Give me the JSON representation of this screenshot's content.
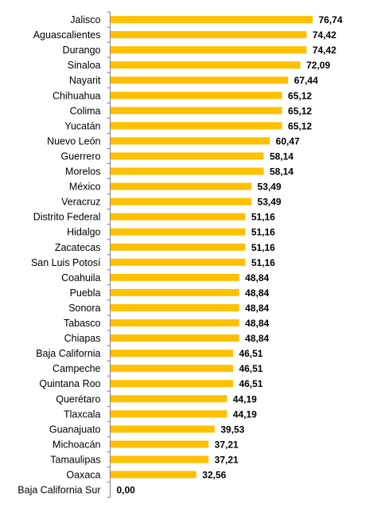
{
  "chart_data": {
    "type": "bar",
    "orientation": "horizontal",
    "categories": [
      "Jalisco",
      "Aguascalientes",
      "Durango",
      "Sinaloa",
      "Nayarit",
      "Chihuahua",
      "Colima",
      "Yucatán",
      "Nuevo León",
      "Guerrero",
      "Morelos",
      "México",
      "Veracruz",
      "Distrito Federal",
      "Hidalgo",
      "Zacatecas",
      "San Luis Potosí",
      "Coahuila",
      "Puebla",
      "Sonora",
      "Tabasco",
      "Chiapas",
      "Baja California",
      "Campeche",
      "Quintana Roo",
      "Querétaro",
      "Tlaxcala",
      "Guanajuato",
      "Michoacán",
      "Tamaulipas",
      "Oaxaca",
      "Baja California Sur"
    ],
    "values": [
      76.74,
      74.42,
      74.42,
      72.09,
      67.44,
      65.12,
      65.12,
      65.12,
      60.47,
      58.14,
      58.14,
      53.49,
      53.49,
      51.16,
      51.16,
      51.16,
      51.16,
      48.84,
      48.84,
      48.84,
      48.84,
      48.84,
      46.51,
      46.51,
      46.51,
      44.19,
      44.19,
      39.53,
      37.21,
      37.21,
      32.56,
      0.0
    ],
    "value_labels": [
      "76,74",
      "74,42",
      "74,42",
      "72,09",
      "67,44",
      "65,12",
      "65,12",
      "65,12",
      "60,47",
      "58,14",
      "58,14",
      "53,49",
      "53,49",
      "51,16",
      "51,16",
      "51,16",
      "51,16",
      "48,84",
      "48,84",
      "48,84",
      "48,84",
      "48,84",
      "46,51",
      "46,51",
      "46,51",
      "44,19",
      "44,19",
      "39,53",
      "37,21",
      "37,21",
      "32,56",
      "0,00"
    ],
    "title": "",
    "xlabel": "",
    "ylabel": "",
    "xlim": [
      0,
      100
    ],
    "grid": false,
    "legend": "none",
    "bar_color": "#FFC000",
    "axis_color": "#808080"
  }
}
